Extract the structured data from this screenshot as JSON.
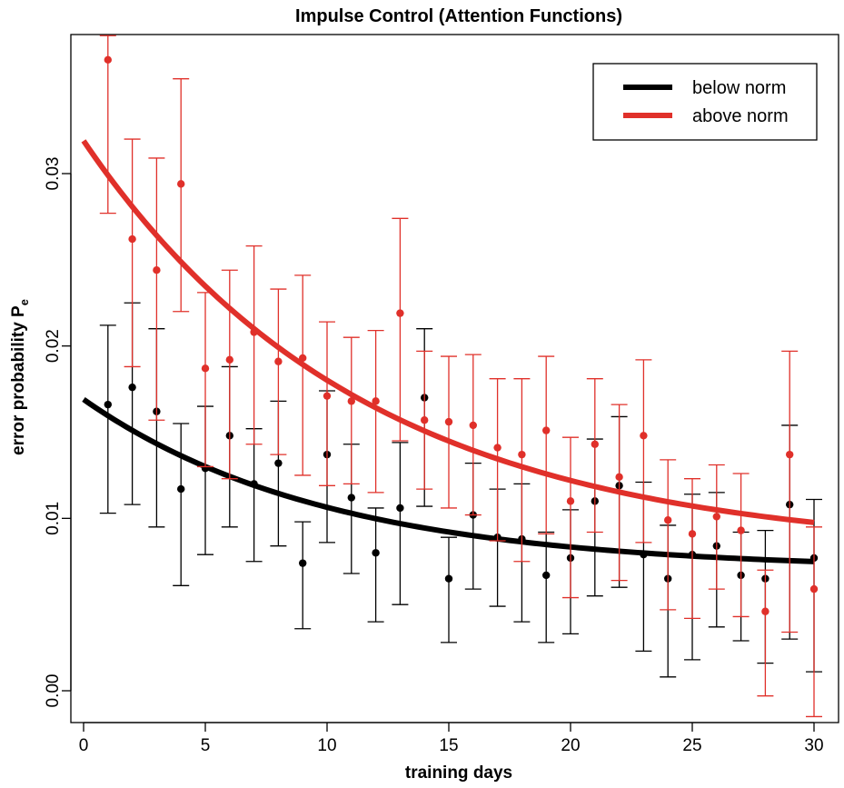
{
  "chart_data": {
    "type": "scatter",
    "title": "Impulse Control (Attention Functions)",
    "xlabel": "training days",
    "ylabel_main": "error probability P",
    "ylabel_sub": "e",
    "xlim": [
      0,
      30
    ],
    "ylim": [
      0,
      0.037
    ],
    "x_ticks": [
      0,
      5,
      10,
      15,
      20,
      25,
      30
    ],
    "x_tick_labels": [
      "0",
      "5",
      "10",
      "15",
      "20",
      "25",
      "30"
    ],
    "y_ticks": [
      0.0,
      0.01,
      0.02,
      0.03
    ],
    "y_tick_labels": [
      "0.00",
      "0.01",
      "0.02",
      "0.03"
    ],
    "legend_position": "top-right",
    "grid": false,
    "series": [
      {
        "name": "below norm",
        "color": "#000000",
        "points": [
          {
            "x": 1,
            "y": 0.0166,
            "lo": 0.0103,
            "hi": 0.0212
          },
          {
            "x": 2,
            "y": 0.0176,
            "lo": 0.0108,
            "hi": 0.0225
          },
          {
            "x": 3,
            "y": 0.0162,
            "lo": 0.0095,
            "hi": 0.021
          },
          {
            "x": 4,
            "y": 0.0117,
            "lo": 0.0061,
            "hi": 0.0155
          },
          {
            "x": 5,
            "y": 0.0129,
            "lo": 0.0079,
            "hi": 0.0165
          },
          {
            "x": 6,
            "y": 0.0148,
            "lo": 0.0095,
            "hi": 0.0188
          },
          {
            "x": 7,
            "y": 0.012,
            "lo": 0.0075,
            "hi": 0.0152
          },
          {
            "x": 8,
            "y": 0.0132,
            "lo": 0.0084,
            "hi": 0.0168
          },
          {
            "x": 9,
            "y": 0.0074,
            "lo": 0.0036,
            "hi": 0.0098
          },
          {
            "x": 10,
            "y": 0.0137,
            "lo": 0.0086,
            "hi": 0.0174
          },
          {
            "x": 11,
            "y": 0.0112,
            "lo": 0.0068,
            "hi": 0.0143
          },
          {
            "x": 12,
            "y": 0.008,
            "lo": 0.004,
            "hi": 0.0106
          },
          {
            "x": 13,
            "y": 0.0106,
            "lo": 0.005,
            "hi": 0.0144
          },
          {
            "x": 14,
            "y": 0.017,
            "lo": 0.0107,
            "hi": 0.021
          },
          {
            "x": 15,
            "y": 0.0065,
            "lo": 0.0028,
            "hi": 0.0089
          },
          {
            "x": 16,
            "y": 0.0102,
            "lo": 0.0059,
            "hi": 0.0132
          },
          {
            "x": 17,
            "y": 0.0089,
            "lo": 0.0049,
            "hi": 0.0117
          },
          {
            "x": 18,
            "y": 0.0088,
            "lo": 0.004,
            "hi": 0.012
          },
          {
            "x": 19,
            "y": 0.0067,
            "lo": 0.0028,
            "hi": 0.0092
          },
          {
            "x": 20,
            "y": 0.0077,
            "lo": 0.0033,
            "hi": 0.0105
          },
          {
            "x": 21,
            "y": 0.011,
            "lo": 0.0055,
            "hi": 0.0146
          },
          {
            "x": 22,
            "y": 0.0119,
            "lo": 0.006,
            "hi": 0.0159
          },
          {
            "x": 23,
            "y": 0.0079,
            "lo": 0.0023,
            "hi": 0.0121
          },
          {
            "x": 24,
            "y": 0.0065,
            "lo": 0.0008,
            "hi": 0.0096
          },
          {
            "x": 25,
            "y": 0.0079,
            "lo": 0.0018,
            "hi": 0.0114
          },
          {
            "x": 26,
            "y": 0.0084,
            "lo": 0.0037,
            "hi": 0.0115
          },
          {
            "x": 27,
            "y": 0.0067,
            "lo": 0.0029,
            "hi": 0.0092
          },
          {
            "x": 28,
            "y": 0.0065,
            "lo": 0.0016,
            "hi": 0.0093
          },
          {
            "x": 29,
            "y": 0.0108,
            "lo": 0.003,
            "hi": 0.0154
          },
          {
            "x": 30,
            "y": 0.0077,
            "lo": 0.0011,
            "hi": 0.0111
          }
        ],
        "fit": {
          "a": 0.0099,
          "b": 0.007,
          "tau": 10
        }
      },
      {
        "name": "above norm",
        "color": "#e0302a",
        "points": [
          {
            "x": 1,
            "y": 0.0366,
            "lo": 0.0277,
            "hi": 0.038
          },
          {
            "x": 2,
            "y": 0.0262,
            "lo": 0.0188,
            "hi": 0.032
          },
          {
            "x": 3,
            "y": 0.0244,
            "lo": 0.0157,
            "hi": 0.0309
          },
          {
            "x": 4,
            "y": 0.0294,
            "lo": 0.022,
            "hi": 0.0355
          },
          {
            "x": 5,
            "y": 0.0187,
            "lo": 0.013,
            "hi": 0.0231
          },
          {
            "x": 6,
            "y": 0.0192,
            "lo": 0.0123,
            "hi": 0.0244
          },
          {
            "x": 7,
            "y": 0.0208,
            "lo": 0.0143,
            "hi": 0.0258
          },
          {
            "x": 8,
            "y": 0.0191,
            "lo": 0.0137,
            "hi": 0.0233
          },
          {
            "x": 9,
            "y": 0.0193,
            "lo": 0.0125,
            "hi": 0.0241
          },
          {
            "x": 10,
            "y": 0.0171,
            "lo": 0.0119,
            "hi": 0.0214
          },
          {
            "x": 11,
            "y": 0.0168,
            "lo": 0.012,
            "hi": 0.0205
          },
          {
            "x": 12,
            "y": 0.0168,
            "lo": 0.0115,
            "hi": 0.0209
          },
          {
            "x": 13,
            "y": 0.0219,
            "lo": 0.0145,
            "hi": 0.0274
          },
          {
            "x": 14,
            "y": 0.0157,
            "lo": 0.0117,
            "hi": 0.0197
          },
          {
            "x": 15,
            "y": 0.0156,
            "lo": 0.0106,
            "hi": 0.0194
          },
          {
            "x": 16,
            "y": 0.0154,
            "lo": 0.0102,
            "hi": 0.0195
          },
          {
            "x": 17,
            "y": 0.0141,
            "lo": 0.0087,
            "hi": 0.0181
          },
          {
            "x": 18,
            "y": 0.0137,
            "lo": 0.0075,
            "hi": 0.0181
          },
          {
            "x": 19,
            "y": 0.0151,
            "lo": 0.0091,
            "hi": 0.0194
          },
          {
            "x": 20,
            "y": 0.011,
            "lo": 0.0054,
            "hi": 0.0147
          },
          {
            "x": 21,
            "y": 0.0143,
            "lo": 0.0092,
            "hi": 0.0181
          },
          {
            "x": 22,
            "y": 0.0124,
            "lo": 0.0064,
            "hi": 0.0166
          },
          {
            "x": 23,
            "y": 0.0148,
            "lo": 0.0086,
            "hi": 0.0192
          },
          {
            "x": 24,
            "y": 0.0099,
            "lo": 0.0047,
            "hi": 0.0134
          },
          {
            "x": 25,
            "y": 0.0091,
            "lo": 0.0042,
            "hi": 0.0123
          },
          {
            "x": 26,
            "y": 0.0101,
            "lo": 0.0059,
            "hi": 0.0131
          },
          {
            "x": 27,
            "y": 0.0093,
            "lo": 0.0043,
            "hi": 0.0126
          },
          {
            "x": 28,
            "y": 0.0046,
            "lo": -0.0003,
            "hi": 0.007
          },
          {
            "x": 29,
            "y": 0.0137,
            "lo": 0.0034,
            "hi": 0.0197
          },
          {
            "x": 30,
            "y": 0.0059,
            "lo": -0.0015,
            "hi": 0.0095
          }
        ],
        "fit": {
          "a": 0.0239,
          "b": 0.008,
          "tau": 11.5
        }
      }
    ]
  }
}
